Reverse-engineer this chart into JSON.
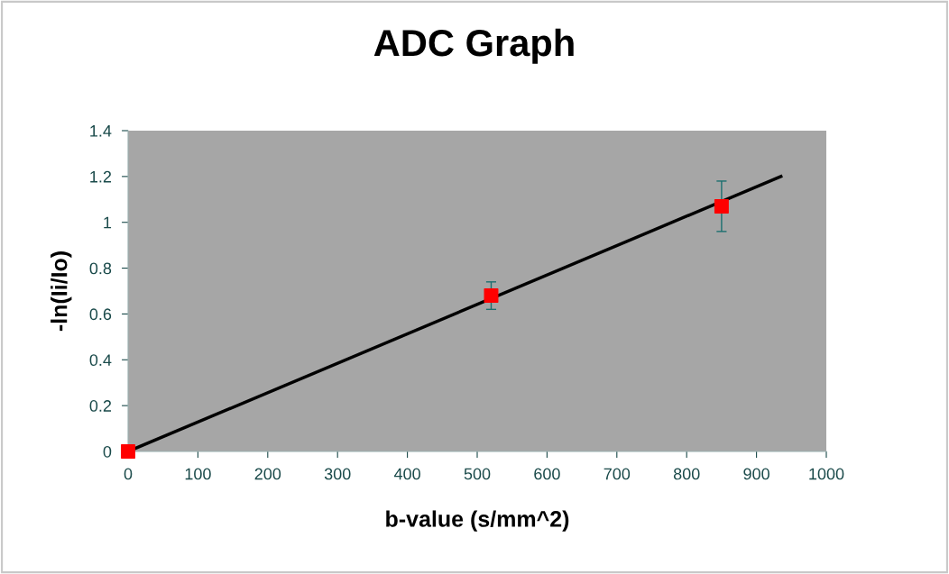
{
  "chart_data": {
    "type": "scatter",
    "title": "ADC Graph",
    "xlabel": "b-value (s/mm^2)",
    "ylabel": "-ln(Ii/Io)",
    "xlim": [
      0,
      1000
    ],
    "xticks": [
      0,
      100,
      200,
      300,
      400,
      500,
      600,
      700,
      800,
      900,
      1000
    ],
    "ylim": [
      0,
      1.4
    ],
    "yticks": [
      0,
      0.2,
      0.4,
      0.6,
      0.8,
      1,
      1.2,
      1.4
    ],
    "grid": false,
    "legend": false,
    "series": [
      {
        "color": "#ff0000",
        "marker": "square",
        "x": [
          0,
          520,
          850
        ],
        "values": [
          0,
          0.68,
          1.07
        ],
        "errors": [
          null,
          0.06,
          0.11
        ]
      },
      {
        "type": "line",
        "color": "#000000",
        "marker": "none",
        "line_style": "solid",
        "x": [
          0,
          935
        ],
        "values": [
          0,
          1.2
        ]
      }
    ]
  }
}
